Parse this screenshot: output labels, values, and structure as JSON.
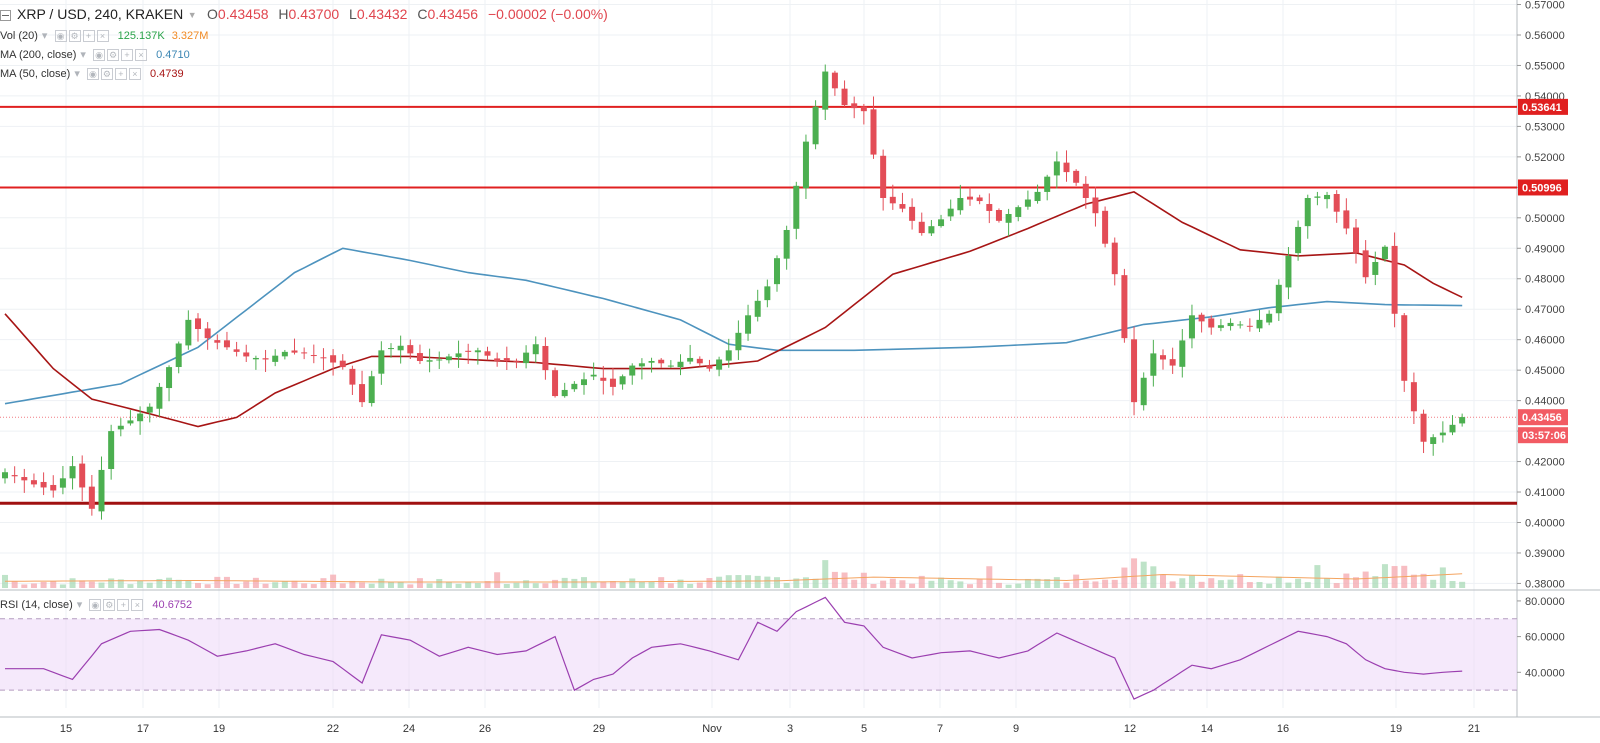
{
  "header": {
    "symbol": "XRP / USD, 240, KRAKEN",
    "o_label": "O",
    "o_value": "0.43458",
    "h_label": "H",
    "h_value": "0.43700",
    "l_label": "L",
    "l_value": "0.43432",
    "c_label": "C",
    "c_value": "0.43456",
    "change": "−0.00002 (−0.00%)"
  },
  "indicators": {
    "vol": {
      "label": "Vol (20)",
      "value1": "125.137K",
      "value2": "3.327M"
    },
    "ma200": {
      "label": "MA (200, close)",
      "value": "0.4710"
    },
    "ma50": {
      "label": "MA (50, close)",
      "value": "0.4739"
    },
    "rsi": {
      "label": "RSI (14, close)",
      "value": "40.6752"
    }
  },
  "colors": {
    "up": "#4caf50",
    "down": "#e34d57",
    "ma200": "#4d93be",
    "ma50": "#a71515",
    "level": "#e02020",
    "level_dark": "#a01010",
    "rsi": "#9b3fb0",
    "rsi_band": "#ecd7f7",
    "vol_ma": "#f4a460",
    "last": "#f07b82"
  },
  "chart_data": {
    "type": "candlestick",
    "x_ticks": [
      "15",
      "17",
      "19",
      "22",
      "24",
      "26",
      "29",
      "Nov",
      "3",
      "5",
      "7",
      "9",
      "12",
      "14",
      "16",
      "19",
      "21"
    ],
    "y_ticks": [
      "0.57000",
      "0.56000",
      "0.55000",
      "0.54000",
      "0.53000",
      "0.52000",
      "0.51000",
      "0.50000",
      "0.49000",
      "0.48000",
      "0.47000",
      "0.46000",
      "0.45000",
      "0.44000",
      "0.43000",
      "0.42000",
      "0.41000",
      "0.40000",
      "0.39000",
      "0.38000"
    ],
    "y_range": [
      0.3785,
      0.5705
    ],
    "price_labels": [
      "0.53641",
      "0.50996",
      "0.43456",
      "03:57:06"
    ],
    "levels": [
      0.53641,
      0.50996,
      0.4063
    ],
    "last_price": 0.43456,
    "rsi_ticks": [
      "80.0000",
      "60.0000",
      "40.0000"
    ],
    "rsi_range": [
      20,
      85
    ],
    "rsi_band": [
      30,
      70
    ],
    "price_anchors": [
      [
        0,
        0.4165
      ],
      [
        3,
        0.4125
      ],
      [
        5,
        0.4105
      ],
      [
        7,
        0.4185
      ],
      [
        9,
        0.4045
      ],
      [
        11,
        0.43
      ],
      [
        13,
        0.4335
      ],
      [
        15,
        0.438
      ],
      [
        17,
        0.451
      ],
      [
        19,
        0.4665
      ],
      [
        21,
        0.4605
      ],
      [
        23,
        0.4575
      ],
      [
        25,
        0.4545
      ],
      [
        27,
        0.4535
      ],
      [
        29,
        0.456
      ],
      [
        31,
        0.4555
      ],
      [
        33,
        0.454
      ],
      [
        35,
        0.451
      ],
      [
        37,
        0.4395
      ],
      [
        39,
        0.4565
      ],
      [
        41,
        0.458
      ],
      [
        43,
        0.453
      ],
      [
        45,
        0.4535
      ],
      [
        47,
        0.4555
      ],
      [
        49,
        0.4565
      ],
      [
        51,
        0.453
      ],
      [
        53,
        0.453
      ],
      [
        55,
        0.4585
      ],
      [
        57,
        0.4415
      ],
      [
        59,
        0.4455
      ],
      [
        61,
        0.4485
      ],
      [
        63,
        0.4445
      ],
      [
        65,
        0.4515
      ],
      [
        67,
        0.453
      ],
      [
        69,
        0.4515
      ],
      [
        71,
        0.454
      ],
      [
        73,
        0.4505
      ],
      [
        75,
        0.4565
      ],
      [
        77,
        0.468
      ],
      [
        79,
        0.4775
      ],
      [
        81,
        0.496
      ],
      [
        83,
        0.525
      ],
      [
        85,
        0.548
      ],
      [
        87,
        0.537
      ],
      [
        89,
        0.535
      ],
      [
        91,
        0.5065
      ],
      [
        93,
        0.503
      ],
      [
        95,
        0.495
      ],
      [
        97,
        0.4995
      ],
      [
        99,
        0.5065
      ],
      [
        101,
        0.5055
      ],
      [
        103,
        0.499
      ],
      [
        105,
        0.5035
      ],
      [
        107,
        0.5085
      ],
      [
        109,
        0.5185
      ],
      [
        111,
        0.5115
      ],
      [
        113,
        0.5015
      ],
      [
        115,
        0.4815
      ],
      [
        117,
        0.4395
      ],
      [
        119,
        0.4555
      ],
      [
        121,
        0.4515
      ],
      [
        123,
        0.468
      ],
      [
        125,
        0.464
      ],
      [
        127,
        0.4655
      ],
      [
        129,
        0.4645
      ],
      [
        131,
        0.4685
      ],
      [
        133,
        0.4875
      ],
      [
        135,
        0.5065
      ],
      [
        137,
        0.5075
      ],
      [
        139,
        0.4965
      ],
      [
        141,
        0.4805
      ],
      [
        143,
        0.4905
      ],
      [
        145,
        0.4465
      ],
      [
        147,
        0.4265
      ],
      [
        149,
        0.4295
      ],
      [
        151,
        0.4346
      ]
    ],
    "ma200_points": [
      [
        0,
        0.439
      ],
      [
        12,
        0.4455
      ],
      [
        20,
        0.4575
      ],
      [
        30,
        0.482
      ],
      [
        35,
        0.49
      ],
      [
        42,
        0.486
      ],
      [
        48,
        0.482
      ],
      [
        54,
        0.4795
      ],
      [
        62,
        0.4735
      ],
      [
        70,
        0.4665
      ],
      [
        75,
        0.4585
      ],
      [
        80,
        0.4565
      ],
      [
        88,
        0.4565
      ],
      [
        100,
        0.4575
      ],
      [
        110,
        0.459
      ],
      [
        118,
        0.465
      ],
      [
        125,
        0.4675
      ],
      [
        131,
        0.4705
      ],
      [
        137,
        0.4725
      ],
      [
        143,
        0.4715
      ],
      [
        151,
        0.4712
      ]
    ],
    "ma50_points": [
      [
        0,
        0.4685
      ],
      [
        5,
        0.4505
      ],
      [
        9,
        0.4405
      ],
      [
        14,
        0.4365
      ],
      [
        20,
        0.4315
      ],
      [
        24,
        0.4345
      ],
      [
        28,
        0.4425
      ],
      [
        34,
        0.4505
      ],
      [
        38,
        0.4545
      ],
      [
        42,
        0.4545
      ],
      [
        48,
        0.4535
      ],
      [
        55,
        0.4525
      ],
      [
        62,
        0.4505
      ],
      [
        70,
        0.4505
      ],
      [
        78,
        0.453
      ],
      [
        85,
        0.464
      ],
      [
        92,
        0.4815
      ],
      [
        100,
        0.489
      ],
      [
        106,
        0.4965
      ],
      [
        112,
        0.5045
      ],
      [
        117,
        0.5085
      ],
      [
        122,
        0.4985
      ],
      [
        128,
        0.4895
      ],
      [
        134,
        0.4875
      ],
      [
        140,
        0.4885
      ],
      [
        145,
        0.4845
      ],
      [
        148,
        0.4785
      ],
      [
        151,
        0.4739
      ]
    ],
    "rsi_points": [
      [
        0,
        42
      ],
      [
        4,
        42
      ],
      [
        7,
        36
      ],
      [
        10,
        56
      ],
      [
        13,
        63
      ],
      [
        16,
        64
      ],
      [
        19,
        58
      ],
      [
        22,
        49
      ],
      [
        25,
        52
      ],
      [
        28,
        56
      ],
      [
        31,
        50
      ],
      [
        34,
        46
      ],
      [
        37,
        34
      ],
      [
        39,
        61
      ],
      [
        42,
        58
      ],
      [
        45,
        49
      ],
      [
        48,
        54
      ],
      [
        51,
        50
      ],
      [
        54,
        52
      ],
      [
        57,
        60
      ],
      [
        59,
        30
      ],
      [
        61,
        36
      ],
      [
        63,
        39
      ],
      [
        65,
        48
      ],
      [
        67,
        54
      ],
      [
        70,
        56
      ],
      [
        73,
        52
      ],
      [
        76,
        47
      ],
      [
        78,
        68
      ],
      [
        80,
        63
      ],
      [
        82,
        74
      ],
      [
        85,
        82
      ],
      [
        87,
        68
      ],
      [
        89,
        66
      ],
      [
        91,
        54
      ],
      [
        94,
        48
      ],
      [
        97,
        51
      ],
      [
        100,
        52
      ],
      [
        103,
        48
      ],
      [
        106,
        52
      ],
      [
        109,
        62
      ],
      [
        112,
        55
      ],
      [
        115,
        48
      ],
      [
        117,
        25
      ],
      [
        119,
        30
      ],
      [
        121,
        37
      ],
      [
        123,
        44
      ],
      [
        125,
        42
      ],
      [
        128,
        47
      ],
      [
        131,
        55
      ],
      [
        134,
        63
      ],
      [
        137,
        60
      ],
      [
        139,
        56
      ],
      [
        141,
        47
      ],
      [
        143,
        42
      ],
      [
        145,
        40
      ],
      [
        147,
        39
      ],
      [
        149,
        40
      ],
      [
        151,
        40.68
      ]
    ],
    "volume_anchors": [
      [
        0,
        1.0
      ],
      [
        10,
        1.2
      ],
      [
        20,
        1.3
      ],
      [
        30,
        1.0
      ],
      [
        40,
        1.2
      ],
      [
        50,
        0.9
      ],
      [
        56,
        1.6
      ],
      [
        60,
        1.2
      ],
      [
        70,
        1.1
      ],
      [
        80,
        1.7
      ],
      [
        85,
        2.4
      ],
      [
        90,
        1.5
      ],
      [
        100,
        1.1
      ],
      [
        110,
        1.3
      ],
      [
        117,
        3.6
      ],
      [
        120,
        2.3
      ],
      [
        130,
        1.6
      ],
      [
        140,
        1.9
      ],
      [
        145,
        3.2
      ],
      [
        151,
        2.0
      ]
    ],
    "volume_ma_points": [
      [
        0,
        0.9
      ],
      [
        20,
        1.0
      ],
      [
        40,
        0.8
      ],
      [
        60,
        0.8
      ],
      [
        80,
        0.95
      ],
      [
        90,
        1.45
      ],
      [
        110,
        1.0
      ],
      [
        120,
        1.8
      ],
      [
        140,
        1.2
      ],
      [
        151,
        1.9
      ]
    ]
  }
}
